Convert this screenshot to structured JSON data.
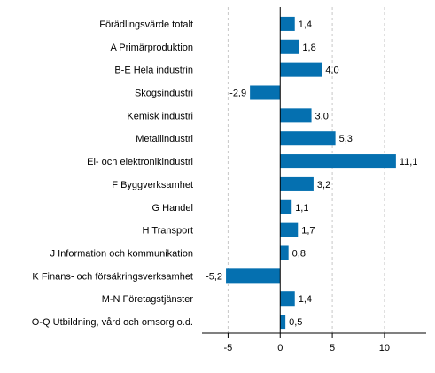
{
  "chart_data": {
    "type": "bar",
    "orientation": "horizontal",
    "title": "",
    "xlabel": "",
    "ylabel": "",
    "categories": [
      "Förädlingsvärde totalt",
      "A Primärproduktion",
      "B-E Hela industrin",
      "Skogsindustri",
      "Kemisk industri",
      "Metallindustri",
      "El- och elektronikindustri",
      "F Byggverksamhet",
      "G Handel",
      "H Transport",
      "J Information och kommunikation",
      "K Finans- och försäkringsverksamhet",
      "M-N Företagstjänster",
      "O-Q Utbildning, vård och omsorg o.d."
    ],
    "values": [
      1.4,
      1.8,
      4.0,
      -2.9,
      3.0,
      5.3,
      11.1,
      3.2,
      1.1,
      1.7,
      0.8,
      -5.2,
      1.4,
      0.5
    ],
    "value_labels": [
      "1,4",
      "1,8",
      "4,0",
      "-2,9",
      "3,0",
      "5,3",
      "11,1",
      "3,2",
      "1,1",
      "1,7",
      "0,8",
      "-5,2",
      "1,4",
      "0,5"
    ],
    "xlim": [
      -7.5,
      14
    ],
    "xticks": [
      -5,
      0,
      5,
      10
    ],
    "xtick_labels": [
      "-5",
      "0",
      "5",
      "10"
    ],
    "grid": "vertical-dashed",
    "legend": "none",
    "bar_color": "#0570b0"
  }
}
